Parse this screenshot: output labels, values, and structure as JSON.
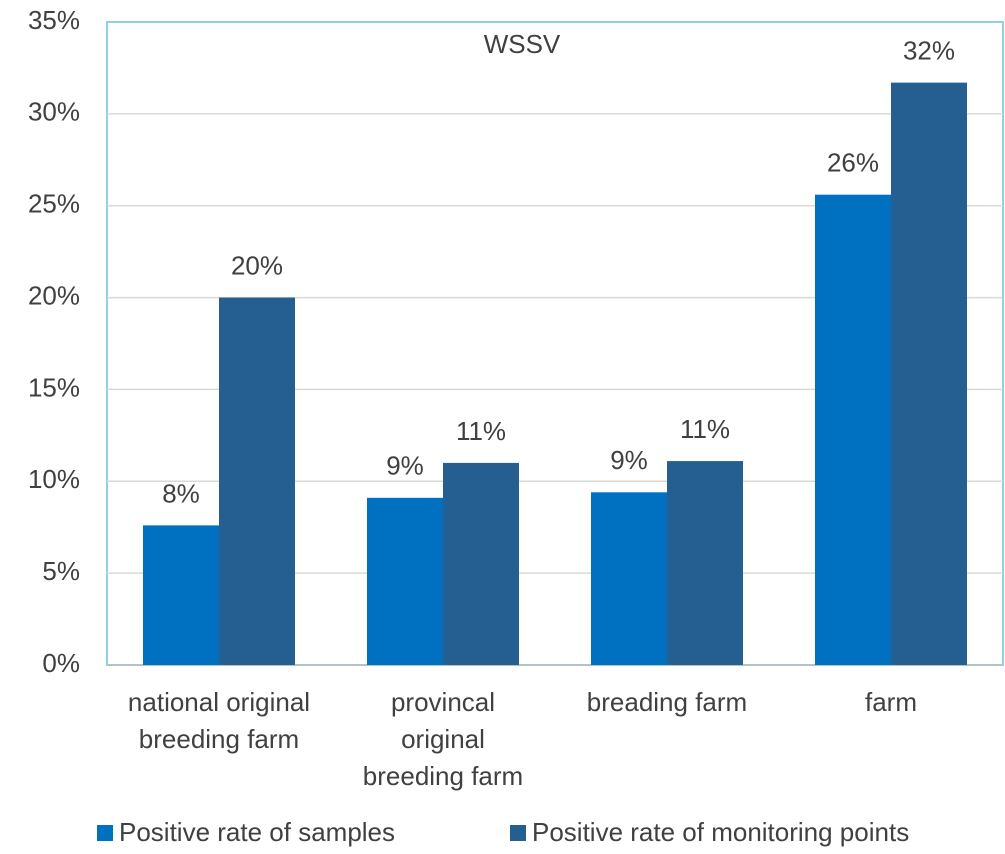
{
  "chart_data": {
    "type": "bar",
    "title": "WSSV",
    "categories": [
      "national original\nbreeding farm",
      "provincal\noriginal\nbreeding farm",
      "breading farm",
      "farm"
    ],
    "series": [
      {
        "name": "Positive rate of samples",
        "color": "#0070c0",
        "values": [
          7.6,
          9.1,
          9.4,
          25.6
        ],
        "value_labels": [
          "8%",
          "9%",
          "9%",
          "26%"
        ]
      },
      {
        "name": "Positive rate of monitoring points",
        "color": "#255e91",
        "values": [
          20,
          11,
          11.1,
          31.7
        ],
        "value_labels": [
          "20%",
          "11%",
          "11%",
          "32%"
        ]
      }
    ],
    "ylim": [
      0,
      35
    ],
    "yticks": [
      {
        "value": 0,
        "label": "0%"
      },
      {
        "value": 5,
        "label": "5%"
      },
      {
        "value": 10,
        "label": "10%"
      },
      {
        "value": 15,
        "label": "15%"
      },
      {
        "value": 20,
        "label": "20%"
      },
      {
        "value": 25,
        "label": "25%"
      },
      {
        "value": 30,
        "label": "30%"
      },
      {
        "value": 35,
        "label": "35%"
      }
    ],
    "grid": true,
    "legend": "bottom"
  }
}
